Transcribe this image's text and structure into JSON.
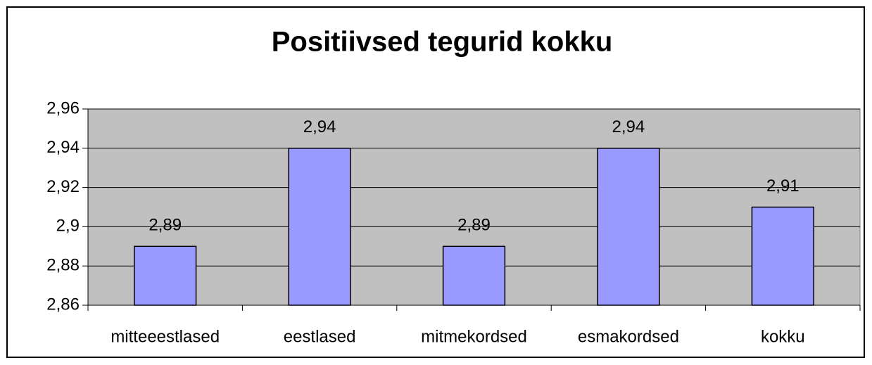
{
  "chart_data": {
    "type": "bar",
    "title": "Positiivsed tegurid kokku",
    "categories": [
      "mitteeestlased",
      "eestlased",
      "mitmekordsed",
      "esmakordsed",
      "kokku"
    ],
    "values": [
      2.89,
      2.94,
      2.89,
      2.94,
      2.91
    ],
    "value_labels": [
      "2,89",
      "2,94",
      "2,89",
      "2,94",
      "2,91"
    ],
    "color": "#9999ff",
    "ylim": [
      2.86,
      2.96
    ],
    "yticks": [
      {
        "value": 2.86,
        "label": "2,86"
      },
      {
        "value": 2.88,
        "label": "2,88"
      },
      {
        "value": 2.9,
        "label": "2,9"
      },
      {
        "value": 2.92,
        "label": "2,92"
      },
      {
        "value": 2.94,
        "label": "2,94"
      },
      {
        "value": 2.96,
        "label": "2,96"
      }
    ],
    "grid": true
  }
}
